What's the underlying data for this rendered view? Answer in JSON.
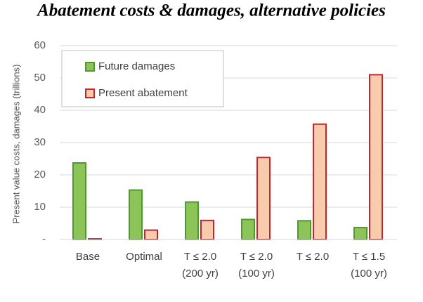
{
  "chart_data": {
    "type": "bar",
    "title": "Abatement costs & damages, alternative policies",
    "y_label": "Present value costs, damages (trillions)",
    "categories": [
      [
        "Base"
      ],
      [
        "Optimal"
      ],
      [
        "T ≤ 2.0",
        "(200 yr)"
      ],
      [
        "T ≤ 2.0",
        "(100 yr)"
      ],
      [
        "T ≤ 2.0"
      ],
      [
        "T ≤ 1.5",
        "(100 yr)"
      ]
    ],
    "series": [
      {
        "name": "Future damages",
        "color": "#8dc45a",
        "edge": "#4f9a2a",
        "values": [
          23.7,
          15.3,
          11.6,
          6.2,
          5.8,
          3.7
        ]
      },
      {
        "name": "Present abatement",
        "color": "#f9cbad",
        "edge": "#c0272d",
        "values": [
          0.2,
          2.9,
          5.9,
          25.4,
          35.7,
          51.0
        ]
      }
    ],
    "ylim": [
      0,
      60
    ],
    "yticks": [
      {
        "value": 0,
        "label": "-"
      },
      10,
      20,
      30,
      40,
      50,
      60
    ],
    "grid": true,
    "legend": "top-left"
  }
}
